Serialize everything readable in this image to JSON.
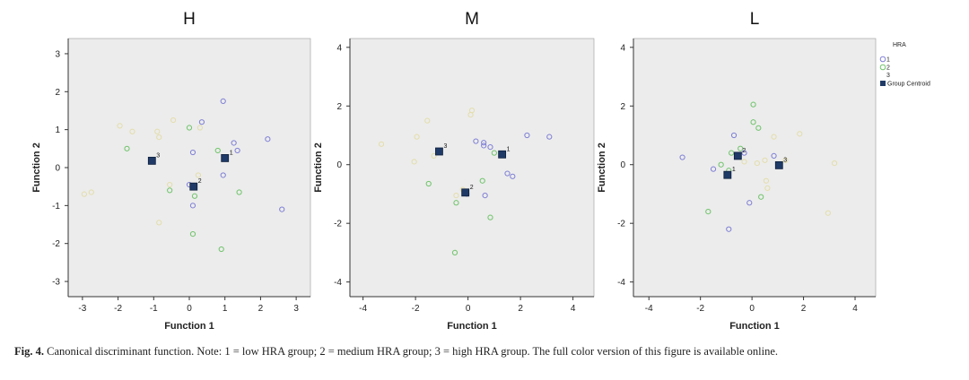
{
  "chart_data": [
    {
      "type": "scatter",
      "title": "H",
      "xlabel": "Function 1",
      "ylabel": "Function 2",
      "xlim": [
        -3.4,
        3.4
      ],
      "ylim": [
        -3.4,
        3.4
      ],
      "xticks": [
        -3,
        -2,
        -1,
        0,
        1,
        2,
        3
      ],
      "yticks": [
        -3,
        -2,
        -1,
        0,
        1,
        2,
        3
      ],
      "series": [
        {
          "name": "1",
          "points": [
            [
              0.95,
              1.75
            ],
            [
              0.35,
              1.2
            ],
            [
              2.2,
              0.75
            ],
            [
              1.25,
              0.65
            ],
            [
              1.35,
              0.45
            ],
            [
              0.1,
              0.4
            ],
            [
              0.95,
              -0.2
            ],
            [
              0.0,
              -0.45
            ],
            [
              0.1,
              -1.0
            ],
            [
              2.6,
              -1.1
            ]
          ]
        },
        {
          "name": "2",
          "points": [
            [
              -1.75,
              0.5
            ],
            [
              0.0,
              1.05
            ],
            [
              0.8,
              0.45
            ],
            [
              -0.55,
              -0.6
            ],
            [
              0.15,
              -0.75
            ],
            [
              1.4,
              -0.65
            ],
            [
              0.1,
              -1.75
            ],
            [
              0.9,
              -2.15
            ]
          ]
        },
        {
          "name": "3",
          "points": [
            [
              -1.95,
              1.1
            ],
            [
              -1.6,
              0.95
            ],
            [
              -0.45,
              1.25
            ],
            [
              -0.9,
              0.95
            ],
            [
              -0.85,
              0.8
            ],
            [
              -0.55,
              -0.45
            ],
            [
              0.25,
              -0.2
            ],
            [
              -0.85,
              -1.45
            ],
            [
              -2.95,
              -0.7
            ],
            [
              -2.75,
              -0.65
            ],
            [
              0.3,
              1.05
            ]
          ]
        }
      ],
      "centroids": [
        {
          "label": "1",
          "x": 1.0,
          "y": 0.25
        },
        {
          "label": "2",
          "x": 0.12,
          "y": -0.5
        },
        {
          "label": "3",
          "x": -1.05,
          "y": 0.18
        }
      ]
    },
    {
      "type": "scatter",
      "title": "M",
      "xlabel": "Function 1",
      "ylabel": "Function 2",
      "xlim": [
        -4.5,
        4.8
      ],
      "ylim": [
        -4.5,
        4.3
      ],
      "xticks": [
        -4,
        -2,
        0,
        2,
        4
      ],
      "yticks": [
        -4,
        -2,
        0,
        2,
        4
      ],
      "series": [
        {
          "name": "1",
          "points": [
            [
              0.3,
              0.8
            ],
            [
              0.6,
              0.75
            ],
            [
              0.6,
              0.65
            ],
            [
              0.85,
              0.6
            ],
            [
              2.25,
              1.0
            ],
            [
              3.1,
              0.95
            ],
            [
              1.5,
              -0.3
            ],
            [
              1.7,
              -0.4
            ],
            [
              0.65,
              -1.05
            ],
            [
              -0.05,
              -1.0
            ]
          ]
        },
        {
          "name": "2",
          "points": [
            [
              -1.5,
              -0.65
            ],
            [
              -0.45,
              -1.3
            ],
            [
              0.55,
              -0.55
            ],
            [
              0.85,
              -1.8
            ],
            [
              -0.5,
              -3.0
            ],
            [
              1.0,
              0.4
            ]
          ]
        },
        {
          "name": "3",
          "points": [
            [
              -3.3,
              0.7
            ],
            [
              -1.55,
              1.5
            ],
            [
              -1.95,
              0.95
            ],
            [
              0.1,
              1.7
            ],
            [
              0.15,
              1.85
            ],
            [
              -2.05,
              0.1
            ],
            [
              -0.45,
              -1.05
            ],
            [
              -0.2,
              -0.85
            ],
            [
              -1.3,
              0.3
            ]
          ]
        }
      ],
      "centroids": [
        {
          "label": "1",
          "x": 1.3,
          "y": 0.35
        },
        {
          "label": "2",
          "x": -0.1,
          "y": -0.95
        },
        {
          "label": "3",
          "x": -1.1,
          "y": 0.45
        }
      ]
    },
    {
      "type": "scatter",
      "title": "L",
      "xlabel": "Function 1",
      "ylabel": "Function 2",
      "xlim": [
        -4.6,
        4.8
      ],
      "ylim": [
        -4.5,
        4.3
      ],
      "xticks": [
        -4,
        -2,
        0,
        2,
        4
      ],
      "yticks": [
        -4,
        -2,
        0,
        2,
        4
      ],
      "legend": {
        "title": "HRA",
        "position": "right",
        "entries": [
          "1",
          "2",
          "3",
          "Group Centroid"
        ]
      },
      "series": [
        {
          "name": "1",
          "points": [
            [
              -2.7,
              0.25
            ],
            [
              -1.5,
              -0.15
            ],
            [
              -0.7,
              1.0
            ],
            [
              0.85,
              0.3
            ],
            [
              -0.1,
              -1.3
            ],
            [
              -0.9,
              -2.2
            ],
            [
              -0.3,
              0.4
            ]
          ]
        },
        {
          "name": "2",
          "points": [
            [
              0.05,
              2.05
            ],
            [
              0.05,
              1.45
            ],
            [
              0.25,
              1.25
            ],
            [
              -0.45,
              0.55
            ],
            [
              -0.8,
              0.4
            ],
            [
              -1.2,
              0.0
            ],
            [
              0.35,
              -1.1
            ],
            [
              -1.7,
              -1.6
            ],
            [
              -0.9,
              -0.2
            ]
          ]
        },
        {
          "name": "3",
          "points": [
            [
              0.85,
              0.95
            ],
            [
              1.85,
              1.05
            ],
            [
              1.3,
              0.15
            ],
            [
              0.5,
              0.15
            ],
            [
              0.2,
              0.05
            ],
            [
              3.2,
              0.05
            ],
            [
              0.55,
              -0.55
            ],
            [
              0.6,
              -0.8
            ],
            [
              2.95,
              -1.65
            ],
            [
              -0.3,
              0.1
            ]
          ]
        }
      ],
      "centroids": [
        {
          "label": "1",
          "x": -0.95,
          "y": -0.35
        },
        {
          "label": "2",
          "x": -0.55,
          "y": 0.3
        },
        {
          "label": "3",
          "x": 1.05,
          "y": -0.02
        }
      ]
    }
  ],
  "colors": {
    "group1": "#7f7fd6",
    "group2": "#6fc46a",
    "group3": "#e3ddaa",
    "centroid": "#1f3a66",
    "plot_bg": "#ececec",
    "axis": "#333333"
  },
  "caption": {
    "label": "Fig. 4.",
    "text": "Canonical discriminant function. Note: 1 = low HRA group; 2 = medium HRA group; 3 = high HRA group. The full color version of this figure is available online."
  }
}
